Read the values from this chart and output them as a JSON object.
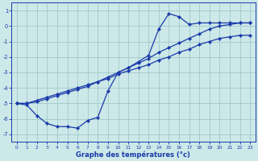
{
  "bg_color": "#cce8e8",
  "grid_color": "#99c4c4",
  "line_color": "#1a3aaa",
  "marker": "D",
  "markersize": 2.2,
  "linewidth": 0.9,
  "xlabel": "Graphe des températures (°c)",
  "xlabel_fontsize": 6.0,
  "xlim": [
    -0.5,
    23.5
  ],
  "ylim": [
    -7.5,
    1.5
  ],
  "yticks": [
    1,
    0,
    -1,
    -2,
    -3,
    -4,
    -5,
    -6,
    -7
  ],
  "xticks": [
    0,
    1,
    2,
    3,
    4,
    5,
    6,
    7,
    8,
    9,
    10,
    11,
    12,
    13,
    14,
    15,
    16,
    17,
    18,
    19,
    20,
    21,
    22,
    23
  ],
  "line1_x": [
    0,
    1,
    2,
    3,
    4,
    5,
    6,
    7,
    8,
    9,
    10,
    11,
    12,
    13,
    14,
    15,
    16,
    17,
    18,
    19,
    20,
    21,
    22,
    23
  ],
  "line1_y": [
    -5.0,
    -5.1,
    -5.8,
    -6.3,
    -6.5,
    -6.5,
    -6.6,
    -6.1,
    -5.9,
    -4.2,
    -3.0,
    -2.7,
    -2.3,
    -1.9,
    -0.2,
    0.8,
    0.6,
    0.1,
    0.2,
    0.2,
    0.2,
    0.2,
    0.2,
    0.2
  ],
  "line2_x": [
    0,
    1,
    2,
    3,
    4,
    5,
    6,
    7,
    8,
    9,
    10,
    11,
    12,
    13,
    14,
    15,
    16,
    17,
    18,
    19,
    20,
    21,
    22,
    23
  ],
  "line2_y": [
    -5.0,
    -5.0,
    -4.9,
    -4.7,
    -4.5,
    -4.3,
    -4.1,
    -3.9,
    -3.6,
    -3.3,
    -3.0,
    -2.7,
    -2.4,
    -2.1,
    -1.7,
    -1.4,
    -1.1,
    -0.8,
    -0.5,
    -0.2,
    0.0,
    0.1,
    0.2,
    0.2
  ],
  "line3_x": [
    0,
    1,
    2,
    3,
    4,
    5,
    6,
    7,
    8,
    9,
    10,
    11,
    12,
    13,
    14,
    15,
    16,
    17,
    18,
    19,
    20,
    21,
    22,
    23
  ],
  "line3_y": [
    -5.0,
    -5.0,
    -4.8,
    -4.6,
    -4.4,
    -4.2,
    -4.0,
    -3.8,
    -3.6,
    -3.4,
    -3.1,
    -2.9,
    -2.7,
    -2.5,
    -2.2,
    -2.0,
    -1.7,
    -1.5,
    -1.2,
    -1.0,
    -0.8,
    -0.7,
    -0.6,
    -0.6
  ]
}
